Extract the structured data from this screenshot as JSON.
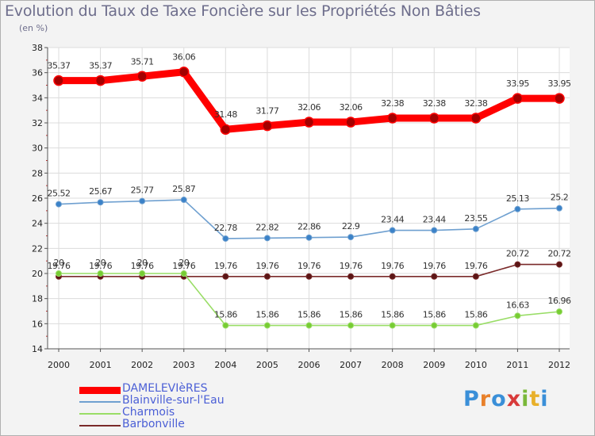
{
  "chart_data": {
    "type": "line",
    "title": "Evolution du Taux de Taxe Foncière sur les Propriétés Non Bâties",
    "subtitle": "(en %)",
    "xlabel": "",
    "ylabel": "",
    "categories": [
      "2000",
      "2001",
      "2002",
      "2003",
      "2004",
      "2005",
      "2006",
      "2007",
      "2008",
      "2009",
      "2010",
      "2011",
      "2012"
    ],
    "ylim": [
      14,
      38
    ],
    "yticks": [
      14,
      16,
      18,
      20,
      22,
      24,
      26,
      28,
      30,
      32,
      34,
      36,
      38
    ],
    "grid": true,
    "series": [
      {
        "name": "DAMELEVIèRES",
        "color": "#ff0000",
        "values": [
          35.37,
          35.37,
          35.71,
          36.06,
          31.48,
          31.77,
          32.06,
          32.06,
          32.38,
          32.38,
          32.38,
          33.95,
          33.95
        ],
        "labels": [
          "35.37",
          "35.37",
          "35.71",
          "36.06",
          "31.48",
          "31.77",
          "32.06",
          "32.06",
          "32.38",
          "32.38",
          "32.38",
          "33.95",
          "33.95"
        ]
      },
      {
        "name": "Blainville-sur-l'Eau",
        "color": "#6fa0d0",
        "values": [
          25.52,
          25.67,
          25.77,
          25.87,
          22.78,
          22.82,
          22.86,
          22.9,
          23.44,
          23.44,
          23.55,
          25.13,
          25.2
        ],
        "labels": [
          "25.52",
          "25.67",
          "25.77",
          "25.87",
          "22.78",
          "22.82",
          "22.86",
          "22.9",
          "23.44",
          "23.44",
          "23.55",
          "25.13",
          "25.2"
        ]
      },
      {
        "name": "Charmois",
        "color": "#99dd66",
        "values": [
          20,
          20,
          20,
          20,
          15.86,
          15.86,
          15.86,
          15.86,
          15.86,
          15.86,
          15.86,
          16.63,
          16.96
        ],
        "labels": [
          "20",
          "20",
          "20",
          "20",
          "15.86",
          "15.86",
          "15.86",
          "15.86",
          "15.86",
          "15.86",
          "15.86",
          "16.63",
          "16.96"
        ]
      },
      {
        "name": "Barbonville",
        "color": "#7a2a2a",
        "values": [
          19.76,
          19.76,
          19.76,
          19.76,
          19.76,
          19.76,
          19.76,
          19.76,
          19.76,
          19.76,
          19.76,
          20.72,
          20.72
        ],
        "labels": [
          "19.76",
          "19.76",
          "19.76",
          "19.76",
          "19.76",
          "19.76",
          "19.76",
          "19.76",
          "19.76",
          "19.76",
          "19.76",
          "20.72",
          "20.72"
        ]
      }
    ]
  },
  "logo": {
    "text": "Proxiti",
    "letters": [
      "P",
      "r",
      "o",
      "x",
      "i",
      "t",
      "i"
    ],
    "colors": [
      "#3a8fd8",
      "#e8802a",
      "#3a8fd8",
      "#d83a3a",
      "#7ab83a",
      "#e8b02a",
      "#3a8fd8"
    ]
  }
}
